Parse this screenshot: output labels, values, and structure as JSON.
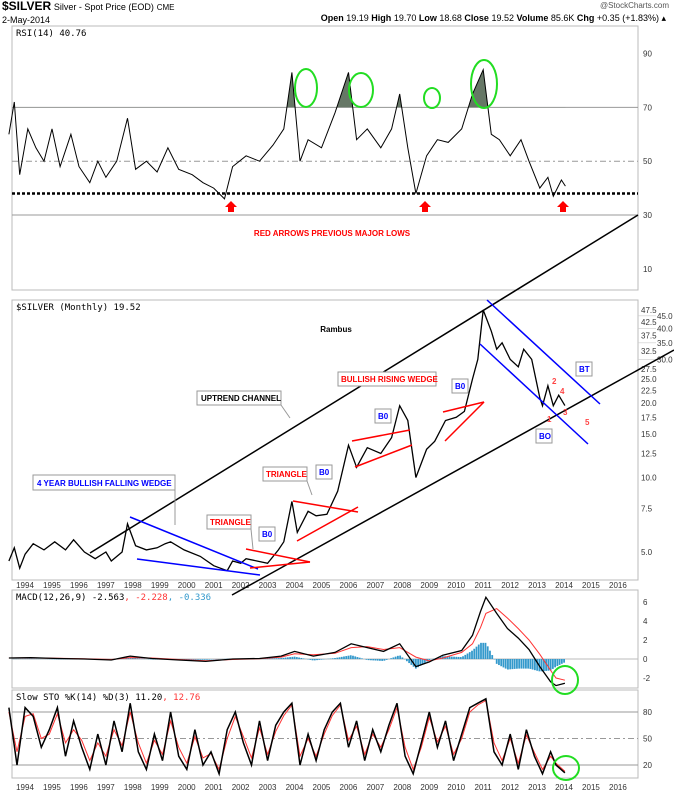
{
  "header": {
    "symbol": "$SILVER",
    "description": "Silver - Spot Price (EOD)",
    "exchange": "CME",
    "date": "2-May-2014",
    "copyright": "@StockCharts.com",
    "open_label": "Open",
    "open": "19.19",
    "high_label": "High",
    "high": "19.70",
    "low_label": "Low",
    "low": "18.68",
    "close_label": "Close",
    "close": "19.52",
    "volume_label": "Volume",
    "volume": "85.6K",
    "chg_label": "Chg",
    "chg": "+0.35 (+1.83%)"
  },
  "colors": {
    "price": "#000000",
    "trend": "#000000",
    "wedge_blue": "#0000ff",
    "pattern_red": "#ff0000",
    "highlight": "#00dd00",
    "macd_signal": "#ff0000",
    "macd_hist": "#3399cc"
  },
  "chart_data": [
    {
      "type": "line",
      "panel": "rsi",
      "legend": "RSI(14) 40.76",
      "ylim": [
        0,
        100
      ],
      "yticks": [
        "90",
        "70",
        "50",
        "30",
        "10"
      ],
      "levels": [
        70,
        50,
        38,
        30
      ],
      "annotation": "RED ARROWS PREVIOUS MAJOR LOWS",
      "x": [
        1993.7,
        1993.9,
        1994.1,
        1994.4,
        1994.7,
        1995.0,
        1995.3,
        1995.6,
        1996.0,
        1996.3,
        1996.7,
        1997.0,
        1997.3,
        1997.7,
        1998.1,
        1998.4,
        1998.8,
        1999.2,
        1999.6,
        2000.0,
        2000.5,
        2000.9,
        2001.3,
        2001.7,
        2002.0,
        2002.5,
        2003.0,
        2003.5,
        2003.9,
        2004.2,
        2004.5,
        2004.8,
        2005.3,
        2005.8,
        2006.3,
        2006.6,
        2007.0,
        2007.5,
        2007.9,
        2008.2,
        2008.5,
        2008.8,
        2009.2,
        2009.6,
        2010.0,
        2010.5,
        2010.9,
        2011.3,
        2011.6,
        2011.9,
        2012.3,
        2012.7,
        2013.0,
        2013.4,
        2013.7,
        2013.9,
        2014.2,
        2014.35
      ],
      "values": [
        60,
        72,
        45,
        62,
        55,
        50,
        62,
        48,
        60,
        48,
        42,
        50,
        44,
        50,
        66,
        47,
        50,
        46,
        55,
        47,
        45,
        42,
        40,
        36,
        48,
        52,
        50,
        56,
        62,
        83,
        50,
        58,
        55,
        68,
        83,
        58,
        62,
        55,
        62,
        75,
        55,
        38,
        52,
        58,
        57,
        62,
        75,
        84,
        60,
        58,
        52,
        58,
        50,
        40,
        44,
        37,
        43,
        40.76
      ]
    },
    {
      "type": "line",
      "panel": "price",
      "legend": "$SILVER (Monthly) 19.52",
      "scale": "log",
      "ylim": [
        4.0,
        48
      ],
      "yticks": [
        "47.5",
        "45.0",
        "42.5",
        "40.0",
        "37.5",
        "35.0",
        "32.5",
        "30.0",
        "27.5",
        "25.0",
        "22.5",
        "20.0",
        "17.5",
        "15.0",
        "12.5",
        "10.0",
        "7.5",
        "5.0"
      ],
      "xticks": [
        "1994",
        "1995",
        "1996",
        "1997",
        "1998",
        "1999",
        "2000",
        "2001",
        "2002",
        "2003",
        "2004",
        "2005",
        "2006",
        "2007",
        "2008",
        "2009",
        "2010",
        "2011",
        "2012",
        "2013",
        "2014",
        "2015",
        "2016"
      ],
      "x": [
        1993.7,
        1993.9,
        1994.1,
        1994.3,
        1994.6,
        1995.0,
        1995.4,
        1995.8,
        1996.1,
        1996.5,
        1996.9,
        1997.3,
        1997.5,
        1997.9,
        1998.1,
        1998.4,
        1998.8,
        1999.2,
        1999.5,
        1999.7,
        2000.2,
        2000.8,
        2001.3,
        2001.8,
        2002.0,
        2002.3,
        2002.5,
        2002.9,
        2003.3,
        2003.7,
        2003.9,
        2004.2,
        2004.4,
        2004.8,
        2005.1,
        2005.5,
        2005.9,
        2006.3,
        2006.6,
        2007.0,
        2007.5,
        2007.9,
        2008.2,
        2008.5,
        2008.8,
        2009.2,
        2009.5,
        2009.9,
        2010.3,
        2010.6,
        2010.9,
        2011.1,
        2011.3,
        2011.6,
        2011.8,
        2012.0,
        2012.3,
        2012.6,
        2012.8,
        2013.1,
        2013.4,
        2013.5,
        2013.7,
        2013.9,
        2014.1,
        2014.33
      ],
      "values": [
        4.6,
        5.2,
        4.3,
        4.9,
        5.4,
        5.1,
        5.5,
        5.1,
        5.6,
        5.0,
        4.7,
        5.0,
        4.6,
        5.0,
        6.5,
        5.3,
        5.1,
        5.2,
        5.4,
        5.5,
        5.1,
        4.8,
        4.4,
        4.2,
        4.6,
        4.5,
        4.7,
        4.6,
        4.5,
        5.1,
        5.5,
        8.0,
        6.0,
        7.3,
        7.0,
        7.1,
        8.8,
        13.5,
        11.0,
        13.2,
        12.5,
        14.5,
        19.5,
        17.0,
        10.0,
        13.0,
        14.0,
        17.0,
        17.5,
        18.5,
        25.0,
        30.0,
        47.5,
        39.0,
        33.0,
        35.0,
        30.0,
        28.0,
        33.0,
        30.0,
        21.0,
        19.5,
        23.5,
        19.5,
        21.5,
        19.52
      ],
      "annotations": [
        "Rambus",
        "UPTREND CHANNEL",
        "4 YEAR BULLISH FALLING WEDGE",
        "TRIANGLE",
        "TRIANGLE",
        "B0",
        "B0",
        "B0",
        "B0",
        "BULLISH RISING WEDGE",
        "BO",
        "BT",
        "1",
        "2",
        "3",
        "4",
        "5"
      ]
    },
    {
      "type": "line",
      "panel": "macd",
      "legend_main": "MACD(12,26,9) -2.563",
      "legend_signal": ", -2.228",
      "legend_hist": ", -0.336",
      "yticks": [
        "6",
        "4",
        "2",
        "0",
        "-2"
      ],
      "x": [
        1993.7,
        1994.5,
        1995.5,
        1996.5,
        1997.5,
        1998.2,
        1999.0,
        2000.0,
        2001.0,
        2002.0,
        2003.0,
        2003.8,
        2004.3,
        2005.0,
        2005.8,
        2006.4,
        2007.0,
        2007.6,
        2008.2,
        2008.8,
        2009.3,
        2009.8,
        2010.5,
        2010.9,
        2011.2,
        2011.4,
        2011.8,
        2012.2,
        2012.6,
        2013.0,
        2013.4,
        2013.8,
        2014.0,
        2014.33
      ],
      "macd": [
        0.1,
        0.15,
        0.05,
        0,
        -0.1,
        0.3,
        0.05,
        -0.1,
        -0.25,
        0,
        0.05,
        0.3,
        0.8,
        0.3,
        0.7,
        1.6,
        1.2,
        0.8,
        1.6,
        -0.8,
        -0.3,
        0.4,
        0.9,
        2.5,
        5.0,
        6.5,
        4.8,
        3.2,
        2.2,
        1.0,
        -0.8,
        -2.4,
        -2.8,
        -2.563
      ],
      "signal": [
        0.1,
        0.12,
        0.08,
        0.02,
        -0.05,
        0.15,
        0.1,
        -0.05,
        -0.18,
        -0.05,
        0.03,
        0.2,
        0.55,
        0.45,
        0.6,
        1.2,
        1.3,
        1.0,
        1.2,
        0.2,
        -0.2,
        0.1,
        0.7,
        1.6,
        3.3,
        4.8,
        5.3,
        4.3,
        3.2,
        2.0,
        0.5,
        -1.2,
        -2.0,
        -2.228
      ]
    },
    {
      "type": "line",
      "panel": "stochastic",
      "legend_main": "Slow STO %K(14) %D(3) 11.20",
      "legend_d": ", 12.76",
      "yticks": [
        "80",
        "50",
        "20"
      ],
      "levels": [
        80,
        50,
        20
      ],
      "x": [
        1993.7,
        1994.0,
        1994.3,
        1994.6,
        1994.9,
        1995.2,
        1995.5,
        1995.8,
        1996.1,
        1996.4,
        1996.7,
        1997.0,
        1997.3,
        1997.6,
        1997.9,
        1998.2,
        1998.5,
        1998.8,
        1999.1,
        1999.4,
        1999.7,
        2000.0,
        2000.3,
        2000.6,
        2000.9,
        2001.2,
        2001.5,
        2001.8,
        2002.1,
        2002.4,
        2002.7,
        2003.0,
        2003.3,
        2003.6,
        2003.9,
        2004.2,
        2004.5,
        2004.8,
        2005.1,
        2005.4,
        2005.7,
        2006.0,
        2006.3,
        2006.6,
        2006.9,
        2007.2,
        2007.5,
        2007.8,
        2008.1,
        2008.4,
        2008.7,
        2009.0,
        2009.3,
        2009.6,
        2009.9,
        2010.2,
        2010.5,
        2010.8,
        2011.1,
        2011.4,
        2011.7,
        2012.0,
        2012.3,
        2012.6,
        2012.9,
        2013.2,
        2013.5,
        2013.8,
        2014.0,
        2014.33
      ],
      "k": [
        85,
        20,
        85,
        75,
        40,
        60,
        85,
        30,
        70,
        40,
        15,
        55,
        20,
        70,
        35,
        90,
        35,
        15,
        55,
        25,
        80,
        30,
        15,
        60,
        20,
        35,
        10,
        60,
        80,
        45,
        20,
        70,
        25,
        65,
        80,
        90,
        20,
        55,
        25,
        60,
        80,
        90,
        40,
        70,
        25,
        60,
        35,
        65,
        90,
        30,
        10,
        45,
        80,
        40,
        70,
        25,
        55,
        85,
        90,
        95,
        35,
        20,
        55,
        15,
        60,
        30,
        10,
        35,
        20,
        11.2
      ],
      "d": [
        80,
        35,
        75,
        78,
        50,
        55,
        78,
        45,
        60,
        48,
        25,
        45,
        30,
        60,
        42,
        80,
        45,
        22,
        48,
        32,
        70,
        40,
        22,
        52,
        28,
        33,
        15,
        50,
        75,
        52,
        28,
        62,
        32,
        58,
        76,
        88,
        30,
        50,
        30,
        55,
        76,
        88,
        48,
        64,
        32,
        55,
        40,
        60,
        85,
        40,
        15,
        40,
        74,
        46,
        64,
        32,
        50,
        80,
        88,
        93,
        45,
        25,
        50,
        22,
        54,
        34,
        15,
        30,
        22,
        12.76
      ]
    }
  ]
}
